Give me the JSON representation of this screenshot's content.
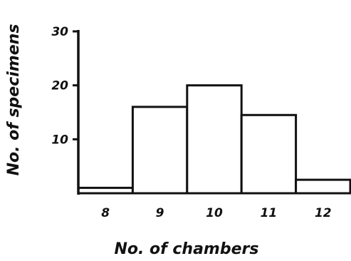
{
  "chart_data": {
    "type": "bar",
    "categories": [
      "8",
      "9",
      "10",
      "11",
      "12"
    ],
    "values": [
      1,
      16,
      20,
      14.5,
      2.5
    ],
    "xlabel": "No. of chambers",
    "ylabel": "No. of specimens",
    "ylim": [
      0,
      30
    ],
    "yticks": [
      "10",
      "20",
      "30"
    ],
    "grid": false,
    "legend": "none",
    "colors": {
      "stroke": "#111111",
      "fill": "#ffffff"
    }
  }
}
